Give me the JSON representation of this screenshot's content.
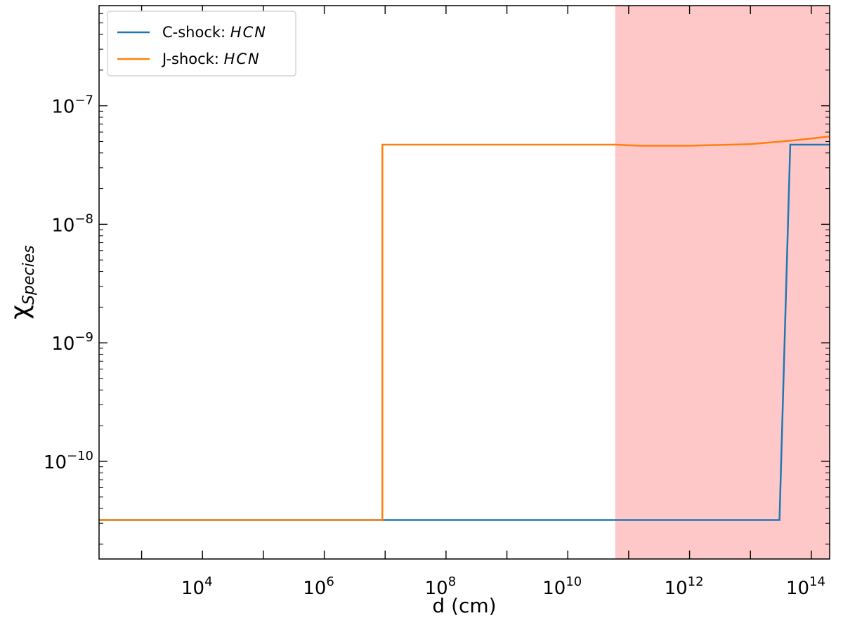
{
  "chart_data": {
    "type": "line",
    "xlabel": "d (cm)",
    "ylabel": "χ",
    "ylabel_sub": "Species",
    "xscale": "log",
    "yscale": "log",
    "xlim": [
      200,
      200000000000000.0
    ],
    "ylim": [
      1.5e-11,
      7e-07
    ],
    "x_ticks": [
      {
        "value": 10000,
        "base": "10",
        "exp": "4"
      },
      {
        "value": 1000000,
        "base": "10",
        "exp": "6"
      },
      {
        "value": 100000000,
        "base": "10",
        "exp": "8"
      },
      {
        "value": 10000000000,
        "base": "10",
        "exp": "10"
      },
      {
        "value": 1000000000000,
        "base": "10",
        "exp": "12"
      },
      {
        "value": 100000000000000,
        "base": "10",
        "exp": "14"
      }
    ],
    "y_ticks": [
      {
        "value": 1e-10,
        "base": "10",
        "exp": "−10"
      },
      {
        "value": 1e-09,
        "base": "10",
        "exp": "−9"
      },
      {
        "value": 1e-08,
        "base": "10",
        "exp": "−8"
      },
      {
        "value": 1e-07,
        "base": "10",
        "exp": "−7"
      }
    ],
    "shaded_region": {
      "x_start": 60000000000.0,
      "x_end": 200000000000000.0,
      "color": "#ffc8c8"
    },
    "series": [
      {
        "name": "C-shock: ",
        "name_italic": "HCN",
        "color": "#1f77b4",
        "x": [
          200,
          10000000.0,
          60000000000.0,
          30000000000000.0,
          45000000000000.0,
          200000000000000.0
        ],
        "y": [
          3.2e-11,
          3.2e-11,
          3.2e-11,
          3.2e-11,
          4.7e-08,
          4.7e-08
        ]
      },
      {
        "name": "J-shock: ",
        "name_italic": "HCN",
        "color": "#ff7f0e",
        "x": [
          200,
          9000000.0,
          9000000.0,
          60000000000.0,
          150000000000.0,
          300000000000.0,
          1000000000000.0,
          10000000000000.0,
          50000000000000.0,
          200000000000000.0
        ],
        "y": [
          3.2e-11,
          3.2e-11,
          4.7e-08,
          4.7e-08,
          4.6e-08,
          4.6e-08,
          4.6e-08,
          4.75e-08,
          5.1e-08,
          5.5e-08
        ]
      }
    ],
    "legend_position": "top-left",
    "grid": false
  }
}
